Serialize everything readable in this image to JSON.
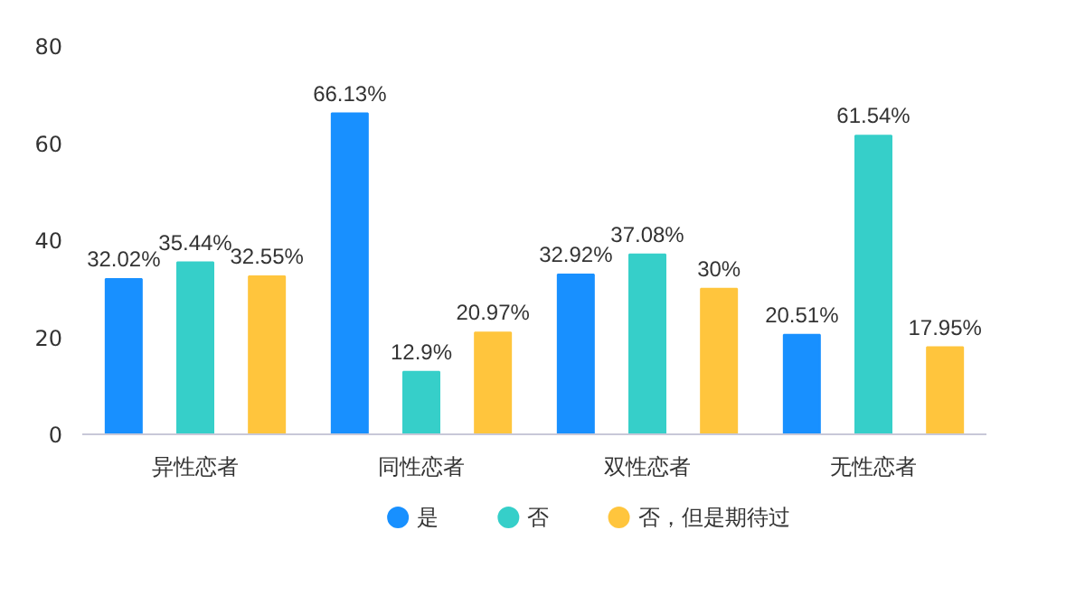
{
  "chart_data": {
    "type": "bar",
    "categories": [
      "异性恋者",
      "同性恋者",
      "双性恋者",
      "无性恋者"
    ],
    "series": [
      {
        "name": "是",
        "color": "#1890ff",
        "values": [
          32.02,
          66.13,
          32.92,
          20.51
        ],
        "value_labels": [
          "32.02%",
          "66.13%",
          "32.92%",
          "20.51%"
        ]
      },
      {
        "name": "否",
        "color": "#36cfc9",
        "values": [
          35.44,
          12.9,
          37.08,
          61.54
        ],
        "value_labels": [
          "35.44%",
          "12.9%",
          "37.08%",
          "61.54%"
        ]
      },
      {
        "name": "否，但是期待过",
        "color": "#ffc53d",
        "values": [
          32.55,
          20.97,
          30,
          17.95
        ],
        "value_labels": [
          "32.55%",
          "20.97%",
          "30%",
          "17.95%"
        ]
      }
    ],
    "ylim": [
      0,
      80
    ],
    "yticks": [
      0,
      20,
      40,
      60,
      80
    ],
    "grid": false,
    "legend": "bottom"
  }
}
